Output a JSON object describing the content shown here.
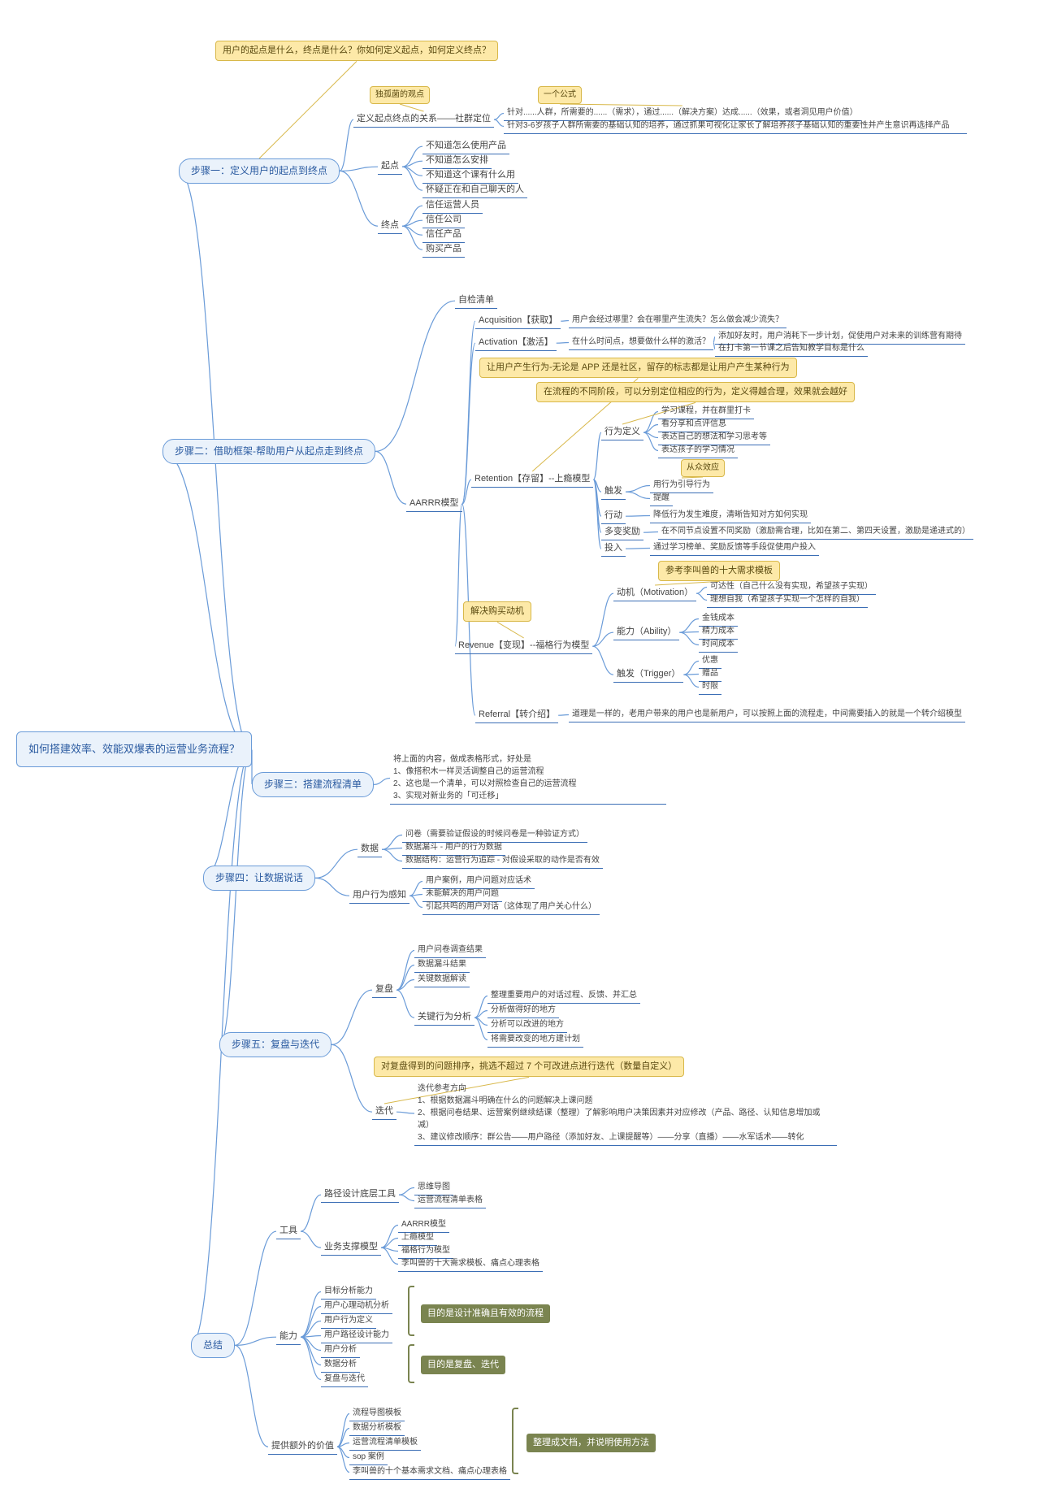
{
  "colors": {
    "background": "#ffffff",
    "rootBorder": "#6a9bd8",
    "rootFill": "#eaf2fb",
    "rootText": "#2a5aa0",
    "leafBorder": "#3b6eb5",
    "leafText": "#444444",
    "calloutFill": "#fde9a8",
    "calloutBorder": "#d8b84a",
    "calloutText": "#5a4a10",
    "oliveFill": "#7a8450",
    "oliveText": "#ffffff",
    "lineColor": "#6a9bd8"
  },
  "root": {
    "text": "如何搭建效率、效能双爆表的运营业务流程？"
  },
  "callouts": {
    "c0": "用户的起点是什么，终点是什么？你如何定义起点，如何定义终点？",
    "c1": "独孤菌的观点",
    "c2": "一个公式",
    "c3": "让用户产生行为-无论是 APP 还是社区，留存的标志都是让用户产生某种行为",
    "c4": "在流程的不同阶段，可以分别定位相应的行为，定义得越合理，效果就会越好",
    "c5": "从众效应",
    "c6": "参考李叫兽的十大需求模板",
    "c7": "解决购买动机",
    "c8": "对复盘得到的问题排序，挑选不超过 7 个可改进点进行迭代（数量自定义）"
  },
  "olives": {
    "o1": "目的是设计准确且有效的流程",
    "o2": "目的是复盘、迭代",
    "o3": "整理成文档，并说明使用方法"
  },
  "step1": {
    "title": "步骤一：定义用户的起点到终点",
    "n1": "定义起点终点的关系——社群定位",
    "n1a": "针对......人群，所需要的......（需求），通过......（解决方案）达成......（效果，或者洞见用户价值）",
    "n1b": "针对3-6岁孩子人群所需要的基础认知的培养，通过抓果可视化让家长了解培养孩子基础认知的重要性并产生意识再选择产品",
    "n2": "起点",
    "n2a": "不知道怎么使用产品",
    "n2b": "不知道怎么安排",
    "n2c": "不知道这个课有什么用",
    "n2d": "怀疑正在和自己聊天的人",
    "n3": "终点",
    "n3a": "信任运营人员",
    "n3b": "信任公司",
    "n3c": "信任产品",
    "n3d": "购买产品"
  },
  "step2": {
    "title": "步骤二：借助框架-帮助用户从起点走到终点",
    "n1": "自检清单",
    "n2": "AARRR模型",
    "acq": {
      "label": "Acquisition【获取】",
      "a": "用户会经过哪里？会在哪里产生流失？怎么做会减少流失？"
    },
    "act": {
      "label": "Activation【激活】",
      "a": "在什么时间点，想要做什么样的激活？",
      "b": "添加好友时，用户消耗下一步计划，促使用户对未来的训练营有期待",
      "c": "在打卡第一节课之后告知教学目标是什么"
    },
    "ret": {
      "label": "Retention【存留】--上瘾模型",
      "bdef": "行为定义",
      "bdef_a": "学习课程，并在群里打卡",
      "bdef_b": "看分享和点评信息",
      "bdef_c": "表达自己的想法和学习思考等",
      "bdef_d": "表达孩子的学习情况",
      "trig": "触发",
      "trig_a": "用行为引导行为",
      "trig_b": "提醒",
      "act": "行动",
      "act_a": "降低行为发生难度，清晰告知对方如何实现",
      "rew": "多变奖励",
      "rew_a": "在不同节点设置不同奖励（激励需合理，比如在第二、第四天设置，激励是递进式的）",
      "inv": "投入",
      "inv_a": "通过学习榜单、奖励反馈等手段促使用户投入"
    },
    "rev": {
      "label": "Revenue【变现】--福格行为模型",
      "mot": "动机（Motivation）",
      "mot_a": "可达性（自己什么没有实现，希望孩子实现）",
      "mot_b": "理想自我（希望孩子实现一个怎样的自我）",
      "abi": "能力（Ability）",
      "abi_a": "金钱成本",
      "abi_b": "精力成本",
      "abi_c": "时间成本",
      "trg": "触发（Trigger）",
      "trg_a": "优惠",
      "trg_b": "赠品",
      "trg_c": "时限"
    },
    "ref": {
      "label": "Referral【转介绍】",
      "a": "道理是一样的，老用户带来的用户也是新用户，可以按照上面的流程走，中间需要插入的就是一个转介绍模型"
    }
  },
  "step3": {
    "title": "步骤三：搭建流程清单",
    "text": "将上面的内容，做成表格形式，好处是\n1、像搭积木一样灵活调整自己的运营流程\n2、这也是一个清单，可以对照检查自己的运营流程\n3、实现对新业务的「可迁移」"
  },
  "step4": {
    "title": "步骤四：让数据说话",
    "data": "数据",
    "d1": "问卷（需要验证假设的时候问卷是一种验证方式）",
    "d2": "数据漏斗 - 用户的行为数据",
    "d3": "数据结构：运营行为追踪 - 对假设采取的动作是否有效",
    "ub": "用户行为感知",
    "u1": "用户案例，用户问题对应话术",
    "u2": "未能解决的用户问题",
    "u3": "引起共鸣的用户对话（这体现了用户关心什么）"
  },
  "step5": {
    "title": "步骤五：复盘与迭代",
    "fp": "复盘",
    "f1": "用户问卷调查结果",
    "f2": "数据漏斗结果",
    "f3": "关键数据解读",
    "f4": "关键行为分析",
    "f4a": "整理重要用户的对话过程、反馈、并汇总",
    "f4b": "分析做得好的地方",
    "f4c": "分析可以改进的地方",
    "f4d": "将需要改变的地方建计划",
    "dd": "迭代",
    "dd_text": "迭代参考方向\n1、根据数据漏斗明确在什么的问题解决上课问题\n2、根据问卷结果、运营案例继续结课（整理）了解影响用户决策因素并对应修改（产品、路径、认知信息增加或减）\n3、建议修改顺序：群公告——用户路径（添加好友、上课提醒等）——分享（直播）——水军话术——转化"
  },
  "summary": {
    "title": "总结",
    "tools": "工具",
    "t1": "路径设计底层工具",
    "t1a": "思维导图",
    "t1b": "运营流程清单表格",
    "t2": "业务支撑模型",
    "t2a": "AARRR模型",
    "t2b": "上瘾模型",
    "t2c": "福格行为模型",
    "t2d": "李叫兽的十大需求模板、痛点心理表格",
    "cap": "能力",
    "c1": "目标分析能力",
    "c2": "用户心理动机分析",
    "c3": "用户行为定义",
    "c4": "用户路径设计能力",
    "c5": "用户分析",
    "c6": "数据分析",
    "c7": "复盘与迭代",
    "val": "提供额外的价值",
    "v1": "流程导图模板",
    "v2": "数据分析模板",
    "v3": "运营流程清单模板",
    "v4": "sop 案例",
    "v5": "李叫兽的十个基本需求文档、痛点心理表格"
  }
}
